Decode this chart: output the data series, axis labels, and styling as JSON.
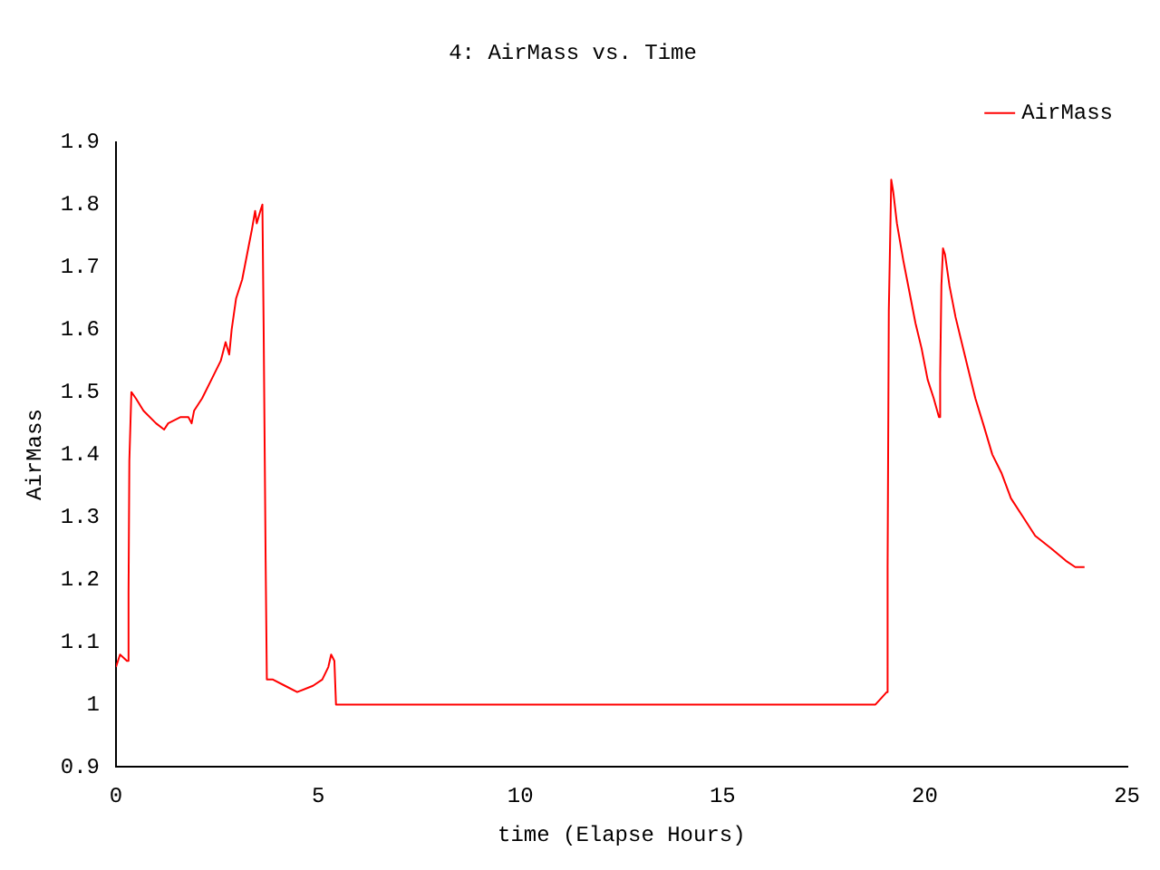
{
  "chart_data": {
    "type": "line",
    "title": "4: AirMass vs. Time",
    "xlabel": "time (Elapse Hours)",
    "ylabel": "AirMass",
    "xlim": [
      0,
      25
    ],
    "xticks": [
      0,
      5,
      10,
      15,
      20,
      25
    ],
    "ylim": [
      0.9,
      1.9
    ],
    "yticks": [
      0.9,
      1,
      1.1,
      1.2,
      1.3,
      1.4,
      1.5,
      1.6,
      1.7,
      1.8,
      1.9
    ],
    "grid": false,
    "legend": "top right",
    "marker": "none",
    "line_style": "solid",
    "series": [
      {
        "name": "AirMass",
        "color": "#ff0000",
        "x": [
          0,
          0.1,
          0.27,
          0.31,
          0.33,
          0.38,
          0.49,
          0.68,
          0.99,
          1.19,
          1.29,
          1.6,
          1.79,
          1.87,
          1.93,
          2.13,
          2.36,
          2.59,
          2.71,
          2.8,
          2.86,
          2.97,
          3.12,
          3.27,
          3.36,
          3.44,
          3.48,
          3.57,
          3.62,
          3.65,
          3.7,
          3.73,
          3.88,
          4.18,
          4.48,
          4.87,
          5.1,
          5.25,
          5.32,
          5.4,
          5.44,
          18.78,
          19.06,
          19.08,
          19.11,
          19.17,
          19.22,
          19.31,
          19.47,
          19.62,
          19.77,
          19.92,
          20.07,
          20.22,
          20.35,
          20.38,
          20.41,
          20.45,
          20.5,
          20.61,
          20.76,
          20.91,
          21.06,
          21.25,
          21.44,
          21.67,
          21.9,
          22.13,
          22.43,
          22.73,
          23.12,
          23.49,
          23.72,
          23.95
        ],
        "values": [
          1.06,
          1.08,
          1.07,
          1.18,
          1.39,
          1.5,
          1.49,
          1.47,
          1.45,
          1.44,
          1.45,
          1.46,
          1.46,
          1.45,
          1.47,
          1.49,
          1.52,
          1.55,
          1.58,
          1.56,
          1.6,
          1.65,
          1.68,
          1.73,
          1.76,
          1.79,
          1.77,
          1.79,
          1.8,
          1.61,
          1.23,
          1.04,
          1.04,
          1.03,
          1.02,
          1.03,
          1.04,
          1.06,
          1.08,
          1.07,
          1.0,
          1.0,
          1.02,
          1.22,
          1.63,
          1.84,
          1.82,
          1.77,
          1.71,
          1.66,
          1.61,
          1.57,
          1.52,
          1.49,
          1.46,
          1.53,
          1.67,
          1.73,
          1.72,
          1.67,
          1.62,
          1.58,
          1.54,
          1.49,
          1.45,
          1.4,
          1.37,
          1.33,
          1.3,
          1.27,
          1.25,
          1.23,
          1.22,
          1.22
        ]
      }
    ]
  }
}
